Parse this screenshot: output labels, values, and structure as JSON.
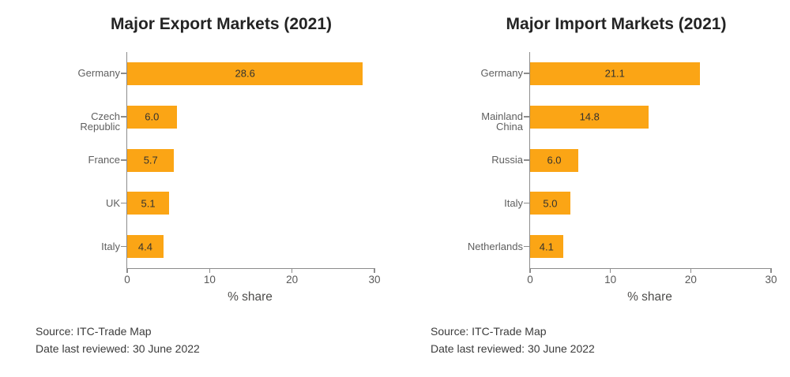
{
  "chart_data": [
    {
      "type": "bar",
      "orientation": "horizontal",
      "title": "Major Export Markets (2021)",
      "categories": [
        "Germany",
        "Czech Republic",
        "France",
        "UK",
        "Italy"
      ],
      "values": [
        28.6,
        6.0,
        5.7,
        5.1,
        4.4
      ],
      "value_labels": [
        "28.6",
        "6.0",
        "5.7",
        "5.1",
        "4.4"
      ],
      "xlabel": "% share",
      "xlim": [
        0,
        30
      ],
      "xticks": [
        0,
        10,
        20,
        30
      ],
      "grid": false,
      "legend": "none",
      "footnotes": [
        "Source: ITC-Trade Map",
        "Date last reviewed: 30 June 2022"
      ]
    },
    {
      "type": "bar",
      "orientation": "horizontal",
      "title": "Major Import Markets (2021)",
      "categories": [
        "Germany",
        "Mainland China",
        "Russia",
        "Italy",
        "Netherlands"
      ],
      "values": [
        21.1,
        14.8,
        6.0,
        5.0,
        4.1
      ],
      "value_labels": [
        "21.1",
        "14.8",
        "6.0",
        "5.0",
        "4.1"
      ],
      "xlabel": "% share",
      "xlim": [
        0,
        30
      ],
      "xticks": [
        0,
        10,
        20,
        30
      ],
      "grid": false,
      "legend": "none",
      "footnotes": [
        "Source: ITC-Trade Map",
        "Date last reviewed: 30 June 2022"
      ]
    }
  ],
  "colors": {
    "bar": "#FBA515",
    "title": "#242424",
    "category_label": "#5F5F5F",
    "tick_label": "#595959",
    "axis_line": "#8C8C8C",
    "value_label": "#33322F",
    "xlabel": "#4E4D4B",
    "footnote": "#3B3B3B",
    "background": "#FFFFFF"
  }
}
